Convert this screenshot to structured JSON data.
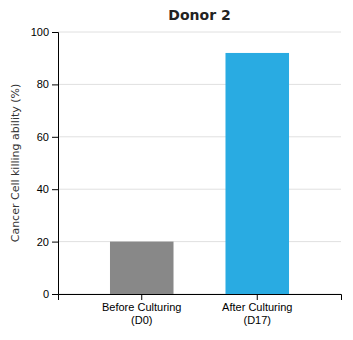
{
  "chart_data": {
    "type": "bar",
    "title": "Donor 2",
    "categories": [
      "Before Culturing\n(D0)",
      "After Culturing\n(D17)"
    ],
    "values": [
      20,
      92
    ],
    "colors": [
      "#888888",
      "#29abe2"
    ],
    "ylabel": "Cancer Cell killing ability (%)",
    "ylim": [
      0,
      100
    ],
    "yticks": [
      0,
      20,
      40,
      60,
      80,
      100
    ],
    "grid": true
  }
}
